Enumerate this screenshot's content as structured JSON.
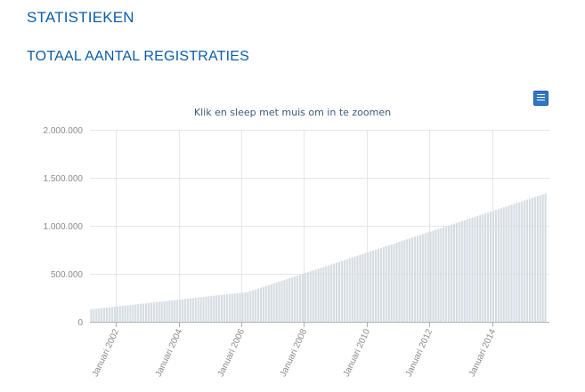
{
  "header": {
    "page_title": "STATISTIEKEN",
    "section_title": "TOTAAL AANTAL REGISTRATIES"
  },
  "toolbar": {
    "export_icon": "menu-icon"
  },
  "colors": {
    "title": "#0a5da8",
    "bar": "#d5dce3",
    "grid": "#e6e6e6",
    "axis": "#b0b0b0",
    "button": "#2f78c4"
  },
  "chart_data": {
    "type": "bar",
    "subtitle": "Klik en sleep met muis om in te zoomen",
    "xlabel": "",
    "ylabel": "",
    "ylim": [
      0,
      2000000
    ],
    "yticks": [
      0,
      500000,
      1000000,
      1500000,
      2000000
    ],
    "ytick_labels": [
      "0",
      "500.000",
      "1.000.000",
      "1.500.000",
      "2.000.000"
    ],
    "xticks": [
      "2002-01",
      "2004-01",
      "2006-01",
      "2008-01",
      "2010-01",
      "2012-01",
      "2014-01"
    ],
    "xtick_labels": [
      "Januari 2002",
      "Januari 2004",
      "Januari 2006",
      "Januari 2008",
      "Januari 2010",
      "Januari 2012",
      "Januari 2014"
    ],
    "x_range": [
      "2001-03",
      "2015-10"
    ],
    "grid": true,
    "interval": "month",
    "series": [
      {
        "start": "2001-03",
        "values": [
          130000,
          133000,
          136000,
          139000,
          142000,
          145000,
          148000,
          151000,
          154000,
          157000,
          160000,
          163000,
          166000,
          169000,
          172000,
          175000,
          178000,
          181000,
          184000,
          187000,
          190000,
          193000,
          196000,
          199000,
          202000,
          205000,
          208000,
          211000,
          214000,
          217000,
          220000,
          223000,
          226000,
          229000,
          232000,
          235000,
          238000,
          241000,
          244000,
          247000,
          250000,
          253000,
          256000,
          259000,
          262000,
          265000,
          268000,
          271000,
          274000,
          277000,
          280000,
          283000,
          286000,
          289000,
          292000,
          295000,
          298000,
          301000,
          304000,
          307000,
          310000,
          319000,
          328000,
          337000,
          346000,
          355000,
          364000,
          373000,
          382000,
          391000,
          400000,
          409000,
          418000,
          427000,
          436000,
          445000,
          454000,
          463000,
          472000,
          481000,
          490000,
          499000,
          508000,
          517000,
          526000,
          535000,
          544000,
          553000,
          562000,
          571000,
          580000,
          589000,
          598000,
          607000,
          616000,
          625000,
          634000,
          643000,
          652000,
          661000,
          670000,
          679000,
          688000,
          697000,
          706000,
          715000,
          724000,
          733000,
          742000,
          751000,
          760000,
          769000,
          778000,
          787000,
          796000,
          805000,
          814000,
          823000,
          832000,
          841000,
          850000,
          859000,
          868000,
          877000,
          886000,
          895000,
          904000,
          913000,
          922000,
          931000,
          940000,
          949000,
          958000,
          967000,
          976000,
          985000,
          994000,
          1003000,
          1012000,
          1021000,
          1030000,
          1039000,
          1048000,
          1057000,
          1066000,
          1075000,
          1084000,
          1093000,
          1102000,
          1111000,
          1120000,
          1129000,
          1138000,
          1147000,
          1156000,
          1165000,
          1174000,
          1183000,
          1192000,
          1201000,
          1210000,
          1219000,
          1228000,
          1237000,
          1246000,
          1255000,
          1264000,
          1273000,
          1282000,
          1291000,
          1300000,
          1309000,
          1318000,
          1327000,
          1336000
        ]
      }
    ]
  }
}
